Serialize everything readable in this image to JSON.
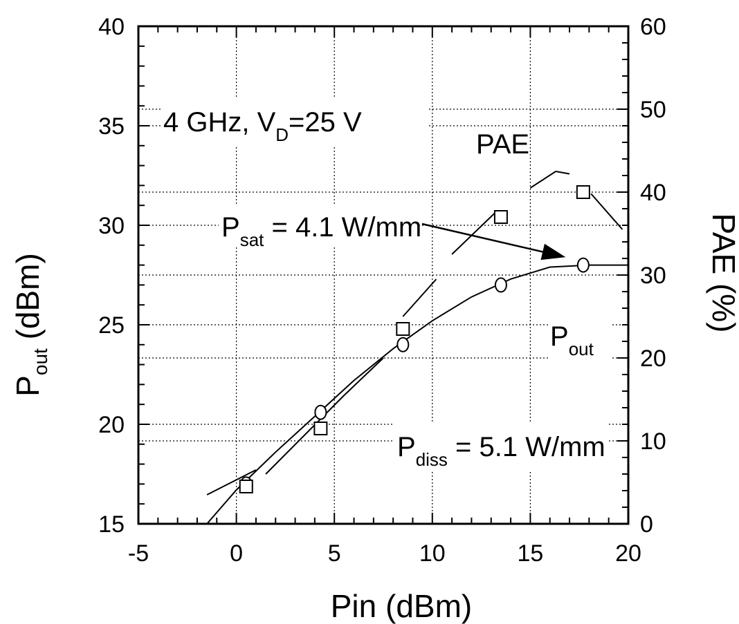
{
  "chart_data": {
    "type": "scatter",
    "xlabel": "Pin (dBm)",
    "xlim": [
      -5,
      20
    ],
    "x_ticks": [
      -5,
      0,
      5,
      10,
      15,
      20
    ],
    "y_left": {
      "label_main": "P",
      "label_sub": "out",
      "label_unit": " (dBm)",
      "lim": [
        15,
        40
      ],
      "ticks": [
        15,
        20,
        25,
        30,
        35,
        40
      ]
    },
    "y_right": {
      "label": "PAE (%)",
      "lim": [
        0,
        60
      ],
      "ticks": [
        0,
        10,
        20,
        30,
        40,
        50,
        60
      ]
    },
    "grid": true,
    "series": [
      {
        "name": "Pout",
        "marker": "circle",
        "axis": "left",
        "x": [
          0.5,
          4.3,
          8.5,
          13.5,
          17.7
        ],
        "values": [
          17.0,
          20.6,
          24.0,
          27.0,
          28.0
        ]
      },
      {
        "name": "PAE",
        "marker": "square",
        "axis": "right",
        "x": [
          0.5,
          4.3,
          8.5,
          13.5,
          17.7
        ],
        "values": [
          4.5,
          11.5,
          23.5,
          37.0,
          40.0
        ]
      }
    ],
    "fit_pout": {
      "x": [
        -1.5,
        0,
        2,
        4,
        6,
        8,
        10,
        12,
        14,
        16,
        18,
        20
      ],
      "values": [
        15.0,
        16.7,
        18.6,
        20.4,
        22.2,
        23.8,
        25.2,
        26.4,
        27.3,
        27.9,
        28.0,
        28.0
      ]
    },
    "fit_pae_segments": [
      {
        "x": [
          -1.5,
          1.0
        ],
        "values": [
          3.5,
          6.5
        ]
      },
      {
        "x": [
          1.5,
          5.5
        ],
        "values": [
          6.0,
          15.5
        ]
      },
      {
        "x": [
          5.5,
          7.5
        ],
        "values": [
          15.5,
          20.0
        ]
      },
      {
        "x": [
          8.5,
          10.2
        ],
        "values": [
          25.0,
          29.5
        ]
      },
      {
        "x": [
          11.0,
          13.2
        ],
        "values": [
          32.5,
          37.5
        ]
      },
      {
        "x": [
          15.0,
          16.3
        ],
        "values": [
          40.5,
          42.5
        ]
      },
      {
        "x": [
          16.3,
          17.0
        ],
        "values": [
          42.5,
          42.2
        ]
      },
      {
        "x": [
          18.1,
          19.7
        ],
        "values": [
          39.8,
          35.5
        ]
      }
    ],
    "annotations": {
      "condition_main": "4 GHz, V",
      "condition_sub": "D",
      "condition_tail": "=25 V",
      "pae_label": "PAE",
      "psat_main": "P",
      "psat_sub": "sat",
      "psat_tail": " = 4.1 W/mm",
      "pout_main": "P",
      "pout_sub": "out",
      "pdiss_main": "P",
      "pdiss_sub": "diss",
      "pdiss_tail": " = 5.1 W/mm"
    }
  }
}
